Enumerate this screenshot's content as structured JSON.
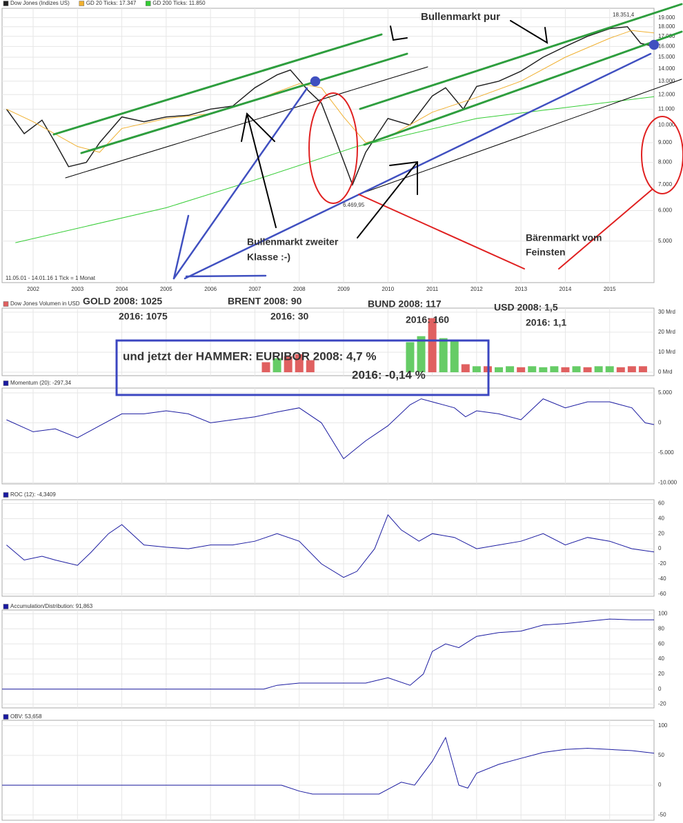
{
  "chart_data": [
    {
      "type": "line",
      "log_scale": true,
      "grid": true,
      "info": "11.05.01 - 14.01.16   1 Tick = 1 Monat",
      "xlim": [
        2001.3,
        2016.0
      ],
      "xticks": [
        2002,
        2003,
        2004,
        2005,
        2006,
        2007,
        2008,
        2009,
        2010,
        2011,
        2012,
        2013,
        2014,
        2015
      ],
      "ylim": [
        3900,
        20100
      ],
      "yticks": [
        {
          "value": 5000,
          "label": "5.000"
        },
        {
          "value": 6000,
          "label": "6.000"
        },
        {
          "value": 7000,
          "label": "7.000"
        },
        {
          "value": 8000,
          "label": "8.000"
        },
        {
          "value": 9000,
          "label": "9.000"
        },
        {
          "value": 10000,
          "label": "10.000"
        },
        {
          "value": 11000,
          "label": "11.000"
        },
        {
          "value": 12000,
          "label": "12.000"
        },
        {
          "value": 13000,
          "label": "13.000"
        },
        {
          "value": 14000,
          "label": "14.000"
        },
        {
          "value": 15000,
          "label": "15.000"
        },
        {
          "value": 16000,
          "label": "16.000"
        },
        {
          "value": 17000,
          "label": "17.000"
        },
        {
          "value": 18000,
          "label": "18.000"
        },
        {
          "value": 19000,
          "label": "19.000"
        }
      ],
      "series": [
        {
          "name": "Dow Jones (Indizes US)",
          "color": "#222222",
          "x": [
            2001.4,
            2001.8,
            2002.2,
            2002.5,
            2002.8,
            2003.2,
            2003.5,
            2004,
            2004.5,
            2005,
            2005.5,
            2006,
            2006.5,
            2007,
            2007.5,
            2007.8,
            2008.2,
            2008.5,
            2008.8,
            2009.2,
            2009.5,
            2010,
            2010.5,
            2011,
            2011.3,
            2011.7,
            2012,
            2012.5,
            2013,
            2013.5,
            2014,
            2014.5,
            2015,
            2015.4,
            2015.7,
            2016
          ],
          "values": [
            11000,
            9500,
            10300,
            9000,
            7800,
            8000,
            9000,
            10500,
            10200,
            10500,
            10600,
            11000,
            11200,
            12500,
            13500,
            13900,
            12300,
            11400,
            9300,
            7000,
            8500,
            10400,
            10000,
            11900,
            12500,
            11000,
            12600,
            13000,
            13800,
            15000,
            16000,
            17000,
            17800,
            18000,
            16300,
            16000
          ]
        },
        {
          "name": "GD 20 Ticks: 17.347",
          "color": "#f0b030",
          "x": [
            2001.4,
            2002,
            2003,
            2003.5,
            2004,
            2005,
            2006,
            2007,
            2008,
            2008.5,
            2009,
            2009.5,
            2010,
            2011,
            2012,
            2013,
            2014,
            2015,
            2015.5,
            2016
          ],
          "values": [
            11000,
            10200,
            8800,
            8500,
            9800,
            10400,
            10700,
            11600,
            12800,
            12500,
            10500,
            9000,
            9300,
            10800,
            11800,
            13000,
            15000,
            16800,
            17600,
            17347
          ]
        },
        {
          "name": "GD 200 Ticks: 11.850",
          "color": "#33cc33",
          "x": [
            2001.6,
            2005,
            2007,
            2009.3,
            2012,
            2016
          ],
          "values": [
            4950,
            6100,
            7200,
            8800,
            10400,
            11850
          ]
        }
      ],
      "annotations": [
        {
          "text": "Bullenmarkt pur",
          "color": "#2e9e3e"
        },
        {
          "text": "Bullenmarkt zweiter",
          "color": "#000000"
        },
        {
          "text": "Klasse :-)",
          "color": "#000000"
        },
        {
          "text": "Bärenmarkt vom",
          "color": "#e02020"
        },
        {
          "text": "Feinsten",
          "color": "#e02020"
        },
        {
          "text": "GOLD 2008: 1025",
          "color": "#4050b0"
        },
        {
          "text": "2016: 1075",
          "color": "#4050b0"
        },
        {
          "text": "BRENT 2008: 90",
          "color": "#4050b0"
        },
        {
          "text": "2016: 30",
          "color": "#4050b0"
        },
        {
          "text": "BUND 2008: 117",
          "color": "#4050b0"
        },
        {
          "text": "2016: 160",
          "color": "#4050b0"
        },
        {
          "text": "USD 2008: 1,5",
          "color": "#4050b0"
        },
        {
          "text": "2016: 1,1",
          "color": "#4050b0"
        },
        {
          "text": "und jetzt der HAMMER: EURIBOR 2008: 4,7 %",
          "color": "#1ea0e0"
        },
        {
          "text": "2016: -0,14 %",
          "color": "#1ea0e0"
        },
        {
          "text": "18.351,4",
          "color": "#999999"
        },
        {
          "text": "6.469,95",
          "color": "#999999"
        }
      ]
    },
    {
      "type": "bar",
      "title": "Dow Jones Volumen in USD",
      "color": "#e06060",
      "ylim": [
        -1.7,
        32
      ],
      "yticks": [
        {
          "value": 0,
          "label": "0 Mrd"
        },
        {
          "value": 10,
          "label": "10 Mrd"
        },
        {
          "value": 20,
          "label": "20 Mrd"
        },
        {
          "value": 30,
          "label": "30 Mrd"
        }
      ],
      "x": [
        2007.25,
        2007.5,
        2007.75,
        2008,
        2008.25,
        2010.5,
        2010.75,
        2011,
        2011.25,
        2011.5,
        2011.75,
        2012,
        2012.25,
        2012.5,
        2012.75,
        2013,
        2013.25,
        2013.5,
        2013.75,
        2014,
        2014.25,
        2014.5,
        2014.75,
        2015,
        2015.25,
        2015.5,
        2015.75
      ],
      "values": [
        5,
        7,
        8,
        9,
        6,
        15,
        18,
        27,
        17,
        16,
        4,
        3,
        3,
        2.5,
        3,
        2.5,
        3,
        2.5,
        3,
        2.5,
        3,
        2.5,
        3,
        3,
        2.5,
        3,
        3
      ],
      "colors": [
        "#e06060",
        "#66cc66",
        "#e06060",
        "#e06060",
        "#e06060",
        "#66cc66",
        "#66cc66",
        "#e06060",
        "#66cc66",
        "#66cc66",
        "#e06060",
        "#66cc66",
        "#e06060",
        "#66cc66",
        "#66cc66",
        "#e06060",
        "#66cc66",
        "#66cc66",
        "#66cc66",
        "#e06060",
        "#66cc66",
        "#e06060",
        "#66cc66",
        "#66cc66",
        "#e06060",
        "#e06060",
        "#e06060"
      ]
    },
    {
      "type": "line",
      "title": "Momentum (20): -297,34",
      "color": "#1a1aa0",
      "ylim": [
        -10200,
        5800
      ],
      "yticks": [
        {
          "value": 5000,
          "label": "5.000"
        },
        0,
        {
          "value": -5000,
          "label": "-5.000"
        },
        {
          "value": -10000,
          "label": "-10.000"
        }
      ],
      "x": [
        2001.4,
        2002,
        2002.5,
        2003,
        2003.5,
        2004,
        2004.5,
        2005,
        2005.5,
        2006,
        2006.5,
        2007,
        2007.5,
        2008,
        2008.5,
        2009,
        2009.5,
        2010,
        2010.5,
        2010.75,
        2011,
        2011.5,
        2011.75,
        2012,
        2012.5,
        2013,
        2013.5,
        2014,
        2014.5,
        2015,
        2015.5,
        2015.8,
        2016
      ],
      "values": [
        500,
        -1500,
        -1000,
        -2500,
        -500,
        1500,
        1500,
        2000,
        1500,
        0,
        500,
        1000,
        1800,
        2500,
        0,
        -6000,
        -3000,
        -500,
        3000,
        4000,
        3500,
        2500,
        1000,
        2000,
        1500,
        500,
        4000,
        2500,
        3500,
        3500,
        2500,
        0,
        -297.34
      ]
    },
    {
      "type": "line",
      "title": "ROC (12): -4,3409",
      "color": "#1a1aa0",
      "ylim": [
        -63,
        65
      ],
      "yticks": [
        60,
        40,
        20,
        0,
        -20,
        -40,
        -60
      ],
      "x": [
        2001.4,
        2001.8,
        2002.2,
        2002.5,
        2003,
        2003.3,
        2003.7,
        2004,
        2004.5,
        2005,
        2005.5,
        2006,
        2006.5,
        2007,
        2007.5,
        2008,
        2008.5,
        2009,
        2009.3,
        2009.7,
        2010,
        2010.3,
        2010.7,
        2011,
        2011.5,
        2012,
        2012.5,
        2013,
        2013.5,
        2014,
        2014.5,
        2015,
        2015.5,
        2016
      ],
      "values": [
        5,
        -15,
        -10,
        -15,
        -22,
        -5,
        20,
        32,
        5,
        2,
        0,
        5,
        5,
        10,
        20,
        10,
        -20,
        -38,
        -30,
        0,
        45,
        25,
        10,
        20,
        15,
        0,
        5,
        10,
        20,
        5,
        15,
        10,
        0,
        -4.3409
      ]
    },
    {
      "type": "line",
      "title": "Accumulation/Distribution: 91,863",
      "color": "#1a1aa0",
      "ylim": [
        -25,
        105
      ],
      "yticks": [
        100,
        80,
        60,
        40,
        20,
        0,
        -20
      ],
      "x": [
        2001.3,
        2007.2,
        2007.5,
        2008,
        2009,
        2009.5,
        2010,
        2010.5,
        2010.8,
        2011,
        2011.3,
        2011.6,
        2012,
        2012.5,
        2013,
        2013.5,
        2014,
        2014.5,
        2015,
        2015.5,
        2016
      ],
      "values": [
        0,
        0,
        5,
        8,
        8,
        8,
        15,
        5,
        20,
        50,
        60,
        55,
        70,
        75,
        77,
        85,
        87,
        90,
        93,
        92,
        91.863
      ]
    },
    {
      "type": "line",
      "title": "OBV: 53,658",
      "color": "#1a1aa0",
      "ylim": [
        -59,
        109
      ],
      "yticks": [
        100,
        50,
        0,
        -50
      ],
      "x": [
        2001.3,
        2007.2,
        2007.6,
        2008,
        2008.3,
        2009,
        2009.8,
        2010.3,
        2010.6,
        2011,
        2011.3,
        2011.6,
        2011.8,
        2012,
        2012.5,
        2013,
        2013.5,
        2014,
        2014.5,
        2015,
        2015.5,
        2016
      ],
      "values": [
        0,
        0,
        0,
        -10,
        -15,
        -15,
        -15,
        5,
        0,
        40,
        80,
        0,
        -5,
        20,
        35,
        45,
        55,
        60,
        62,
        60,
        58,
        53.658
      ]
    }
  ]
}
